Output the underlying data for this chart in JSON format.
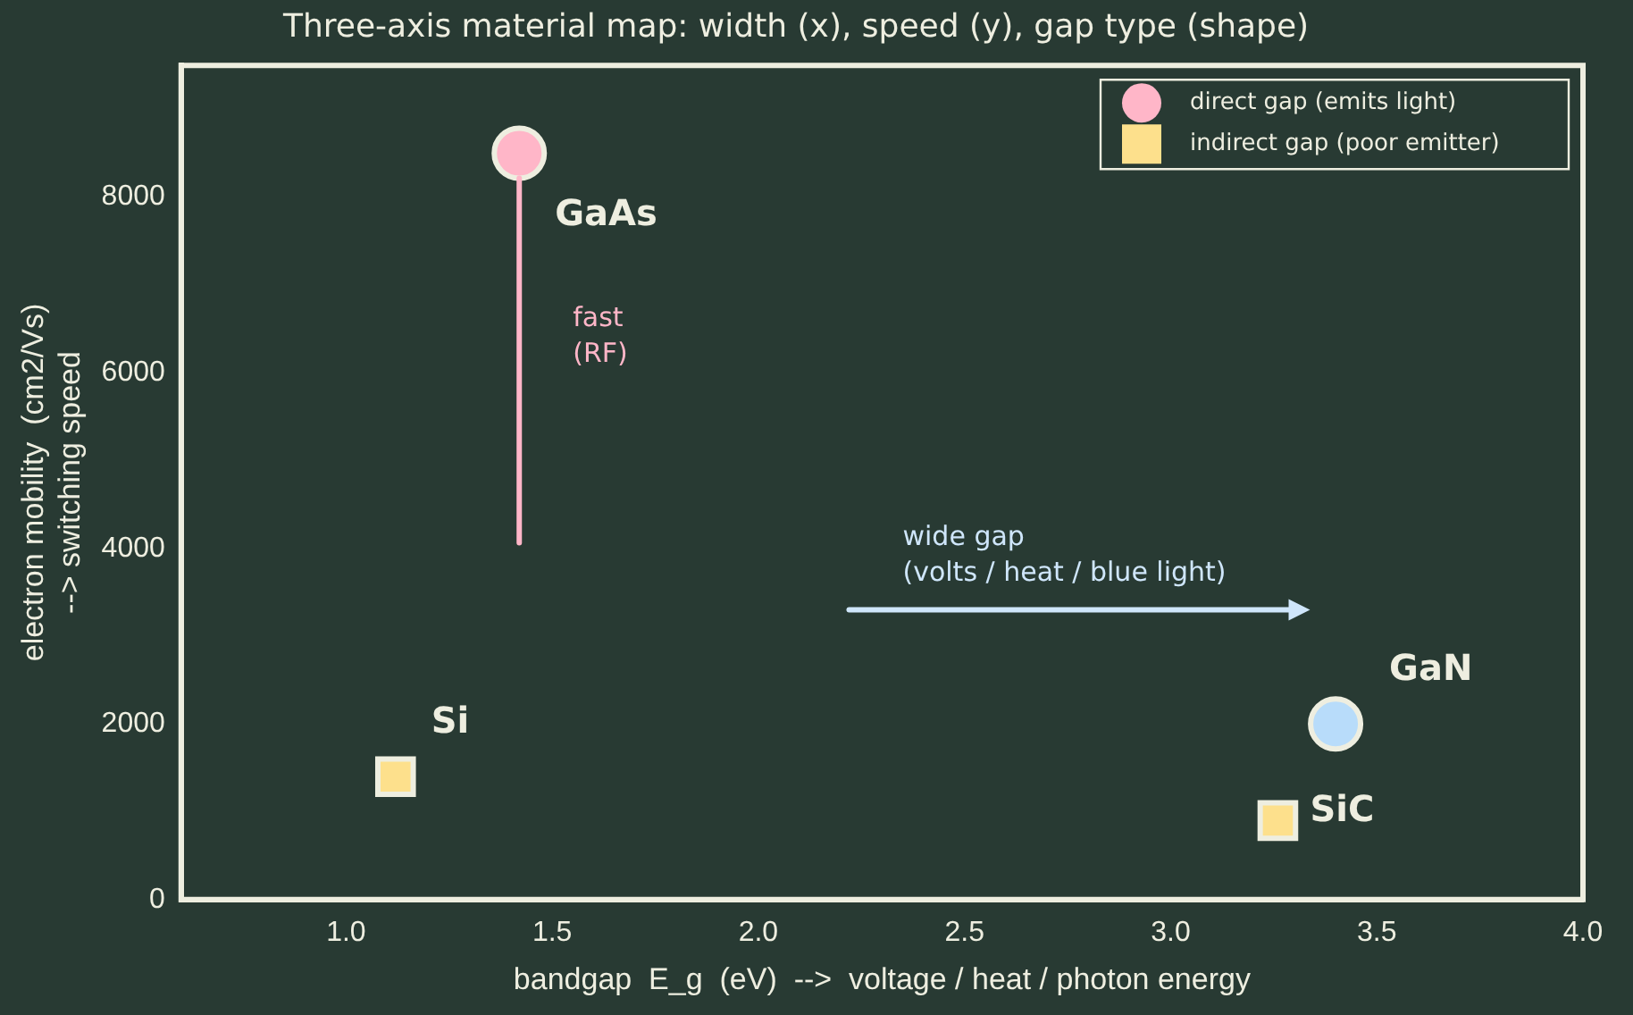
{
  "chart_data": {
    "type": "scatter",
    "title": "Three-axis material map: width (x), speed (y), gap type (shape)",
    "xlabel": "bandgap  E_g  (eV)  -->  voltage / heat / photon energy",
    "ylabel": "electron mobility  (cm2/Vs)\n--> switching speed",
    "xlim": [
      0.6,
      4.0
    ],
    "xticks": [
      {
        "value": 1,
        "label": "1.0"
      },
      {
        "value": 1.5,
        "label": "1.5"
      },
      {
        "value": 2,
        "label": "2.0"
      },
      {
        "value": 2.5,
        "label": "2.5"
      },
      {
        "value": 3,
        "label": "3.0"
      },
      {
        "value": 3.5,
        "label": "3.5"
      },
      {
        "value": 4,
        "label": "4.0"
      }
    ],
    "ylim": [
      0,
      9500
    ],
    "yticks": [
      0,
      2000,
      4000,
      6000,
      8000
    ],
    "grid": false,
    "legend": "top right",
    "series": [
      {
        "name": "direct gap (emits light)",
        "marker": "circle",
        "x": [
          1.42,
          3.4
        ],
        "values": [
          8500,
          2000
        ],
        "colors": [
          "#ffb6c8",
          "#b8dcfa"
        ]
      },
      {
        "name": "indirect gap (poor emitter)",
        "marker": "square",
        "x": [
          1.12,
          3.26
        ],
        "values": [
          1400,
          900
        ],
        "colors": [
          "#fde08c",
          "#fde08c"
        ]
      }
    ],
    "annotations": [
      {
        "text": "GaAs",
        "x": 1.42,
        "y": 8500
      },
      {
        "text": "GaN",
        "x": 3.4,
        "y": 2000
      },
      {
        "text": "Si",
        "x": 1.12,
        "y": 1400
      },
      {
        "text": "SiC",
        "x": 3.26,
        "y": 900
      },
      "fast\n(RF)",
      "wide gap\n(volts / heat / blue light)"
    ]
  }
}
